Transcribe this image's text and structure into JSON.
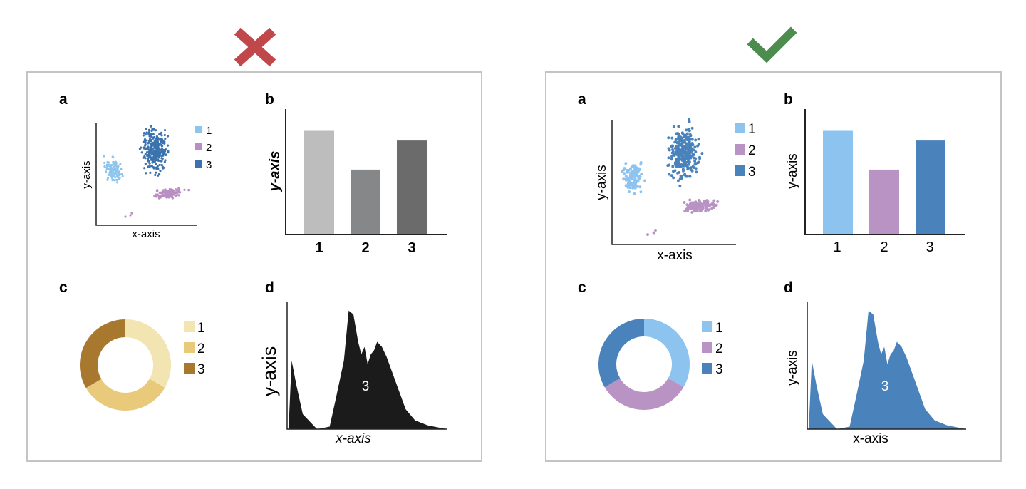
{
  "verdicts": {
    "bad": {
      "icon": "cross-icon",
      "color": "#c0484a"
    },
    "good": {
      "icon": "check-icon",
      "color": "#4c8c4f"
    }
  },
  "panel_letters": {
    "a": "a",
    "b": "b",
    "c": "c",
    "d": "d"
  },
  "axes": {
    "x": "x-axis",
    "y": "y-axis"
  },
  "legend_labels": [
    "1",
    "2",
    "3"
  ],
  "bar_categories": [
    "1",
    "2",
    "3"
  ],
  "area_label": "3",
  "colors": {
    "bad_bars": [
      "#bdbdbd",
      "#858789",
      "#6b6b6b"
    ],
    "bad_donut": [
      "#f2e5b2",
      "#e9c97a",
      "#a9782f"
    ],
    "bad_area": "#1b1b1b",
    "bad_scatter": [
      "#8ec5ec",
      "#b98fc3",
      "#3a73ad"
    ],
    "good": [
      "#8cc3ef",
      "#b893c4",
      "#4a82bb"
    ]
  },
  "chart_data": [
    {
      "type": "scatter",
      "panel": "a",
      "groups": [
        "1",
        "2",
        "3"
      ]
    },
    {
      "type": "bar",
      "panel": "b",
      "categories": [
        "1",
        "2",
        "3"
      ],
      "values": [
        0.85,
        0.53,
        0.77
      ],
      "ylim": [
        0,
        1
      ]
    },
    {
      "type": "pie",
      "panel": "c",
      "labels": [
        "1",
        "2",
        "3"
      ],
      "values": [
        33.3,
        33.3,
        33.4
      ]
    },
    {
      "type": "area",
      "panel": "d",
      "series": [
        {
          "name": "3"
        }
      ]
    }
  ]
}
